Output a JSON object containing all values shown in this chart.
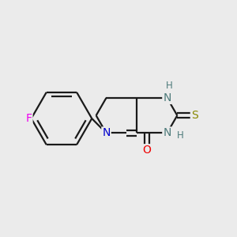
{
  "bg_color": "#ebebeb",
  "bond_color": "#1a1a1a",
  "bond_lw": 1.6,
  "atom_colors": {
    "F": "#ee00ee",
    "N": "#0000cc",
    "N_gray": "#4d7a7a",
    "O": "#ee0000",
    "S": "#888800",
    "H_gray": "#4d7a7a"
  },
  "font_size_atom": 10,
  "font_size_h": 8.5
}
